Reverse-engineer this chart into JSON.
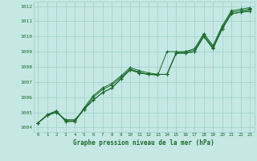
{
  "title": "Graphe pression niveau de la mer (hPa)",
  "xlabel_ticks": [
    0,
    1,
    2,
    3,
    4,
    5,
    6,
    7,
    8,
    9,
    10,
    11,
    12,
    13,
    14,
    15,
    16,
    17,
    18,
    19,
    20,
    21,
    22,
    23
  ],
  "ylim": [
    1003.7,
    1012.3
  ],
  "yticks": [
    1004,
    1005,
    1006,
    1007,
    1008,
    1009,
    1010,
    1011,
    1012
  ],
  "bg_color": "#c5e8e5",
  "grid_color": "#9fcfcc",
  "line_color": "#1a6b2a",
  "series": [
    [
      1004.3,
      1004.8,
      1005.0,
      1004.5,
      1004.5,
      1005.2,
      1005.8,
      1006.3,
      1006.6,
      1007.2,
      1007.8,
      1007.6,
      1007.5,
      1007.5,
      1007.5,
      1008.9,
      1008.9,
      1009.0,
      1010.0,
      1009.2,
      1010.5,
      1011.5,
      1011.6,
      1011.65
    ],
    [
      1004.3,
      1004.8,
      1005.0,
      1004.5,
      1004.5,
      1005.2,
      1005.8,
      1006.3,
      1006.6,
      1007.2,
      1007.8,
      1007.6,
      1007.5,
      1007.5,
      1007.5,
      1008.9,
      1008.9,
      1009.0,
      1010.0,
      1009.2,
      1010.5,
      1011.5,
      1011.6,
      1011.75
    ],
    [
      1004.3,
      1004.8,
      1005.1,
      1004.4,
      1004.4,
      1005.2,
      1006.0,
      1006.5,
      1006.8,
      1007.3,
      1007.85,
      1007.65,
      1007.5,
      1007.45,
      1009.0,
      1009.0,
      1009.0,
      1009.1,
      1010.1,
      1009.3,
      1010.6,
      1011.6,
      1011.7,
      1011.8
    ],
    [
      1004.3,
      1004.85,
      1005.1,
      1004.4,
      1004.4,
      1005.3,
      1006.1,
      1006.6,
      1006.9,
      1007.4,
      1007.95,
      1007.75,
      1007.6,
      1007.5,
      1007.5,
      1008.9,
      1009.0,
      1009.2,
      1010.2,
      1009.4,
      1010.7,
      1011.7,
      1011.8,
      1011.9
    ]
  ]
}
